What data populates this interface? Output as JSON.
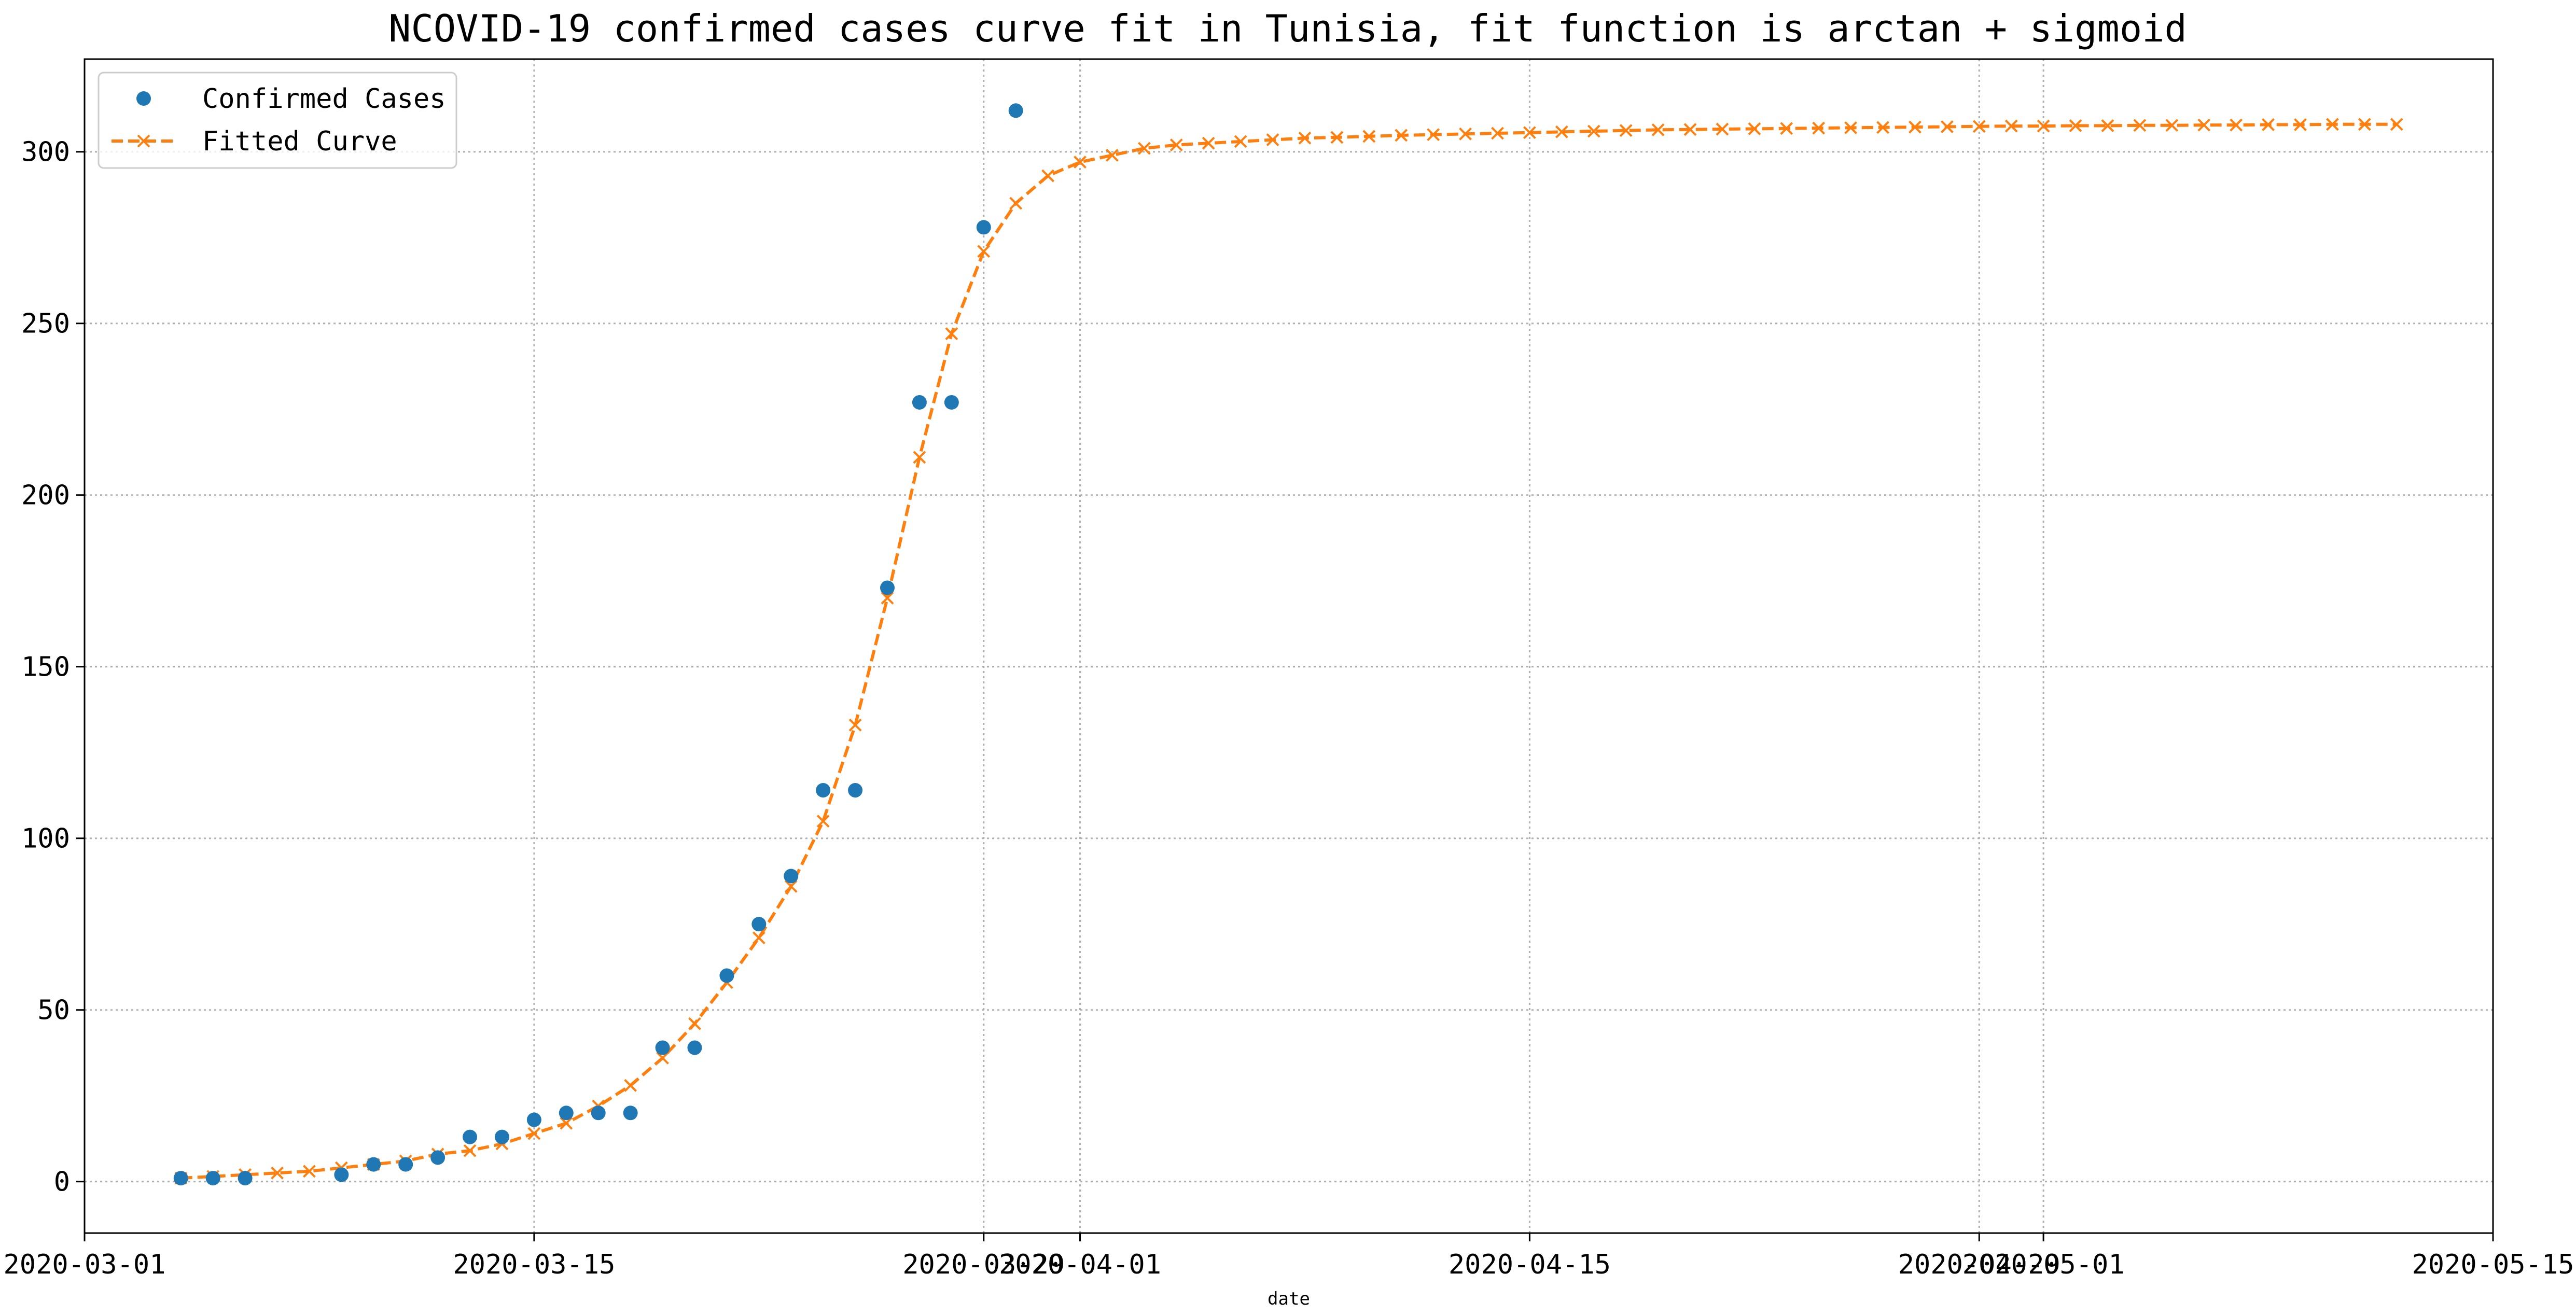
{
  "chart_data": {
    "type": "line",
    "title": "NCOVID-19 confirmed cases curve fit in Tunisia, fit function is arctan + sigmoid",
    "xlabel": "date",
    "ylabel": "",
    "x_axis_type": "date",
    "xlim": [
      "2020-03-01",
      "2020-05-15"
    ],
    "ylim": [
      -15,
      327
    ],
    "x_ticks": [
      "2020-03-01",
      "2020-03-15",
      "2020-03-29",
      "2020-04-01",
      "2020-04-15",
      "2020-04-29",
      "2020-05-01",
      "2020-05-15"
    ],
    "y_ticks": [
      0,
      50,
      100,
      150,
      200,
      250,
      300
    ],
    "grid": true,
    "legend_position": "top-left",
    "colors": {
      "confirmed": "#1f77b4",
      "fitted": "#ff7f0e"
    },
    "series": [
      {
        "name": "Confirmed Cases",
        "style": "markers",
        "points": [
          [
            "2020-03-04",
            1
          ],
          [
            "2020-03-05",
            1
          ],
          [
            "2020-03-06",
            1
          ],
          [
            "2020-03-09",
            2
          ],
          [
            "2020-03-10",
            5
          ],
          [
            "2020-03-11",
            5
          ],
          [
            "2020-03-12",
            7
          ],
          [
            "2020-03-13",
            13
          ],
          [
            "2020-03-14",
            13
          ],
          [
            "2020-03-15",
            18
          ],
          [
            "2020-03-16",
            20
          ],
          [
            "2020-03-17",
            20
          ],
          [
            "2020-03-18",
            20
          ],
          [
            "2020-03-19",
            39
          ],
          [
            "2020-03-20",
            39
          ],
          [
            "2020-03-21",
            60
          ],
          [
            "2020-03-22",
            75
          ],
          [
            "2020-03-23",
            89
          ],
          [
            "2020-03-24",
            114
          ],
          [
            "2020-03-25",
            114
          ],
          [
            "2020-03-26",
            173
          ],
          [
            "2020-03-27",
            227
          ],
          [
            "2020-03-28",
            227
          ],
          [
            "2020-03-29",
            278
          ],
          [
            "2020-03-30",
            312
          ]
        ]
      },
      {
        "name": "Fitted Curve",
        "style": "dashed-line-x-markers",
        "start_date": "2020-03-04",
        "values": [
          1,
          1.5,
          2,
          2.5,
          3,
          4,
          5,
          6,
          8,
          9,
          11,
          14,
          17,
          22,
          28,
          36,
          46,
          58,
          71,
          86,
          105,
          133,
          170,
          211,
          247,
          271,
          285,
          293,
          297,
          299,
          301,
          302,
          302.5,
          303,
          303.5,
          304,
          304.2,
          304.5,
          304.8,
          305,
          305.2,
          305.4,
          305.6,
          305.8,
          306,
          306.2,
          306.4,
          306.5,
          306.6,
          306.7,
          306.8,
          306.9,
          307,
          307.1,
          307.2,
          307.3,
          307.4,
          307.5,
          307.5,
          307.6,
          307.6,
          307.7,
          307.7,
          307.8,
          307.8,
          307.9,
          307.9,
          308,
          308,
          308
        ]
      }
    ]
  }
}
